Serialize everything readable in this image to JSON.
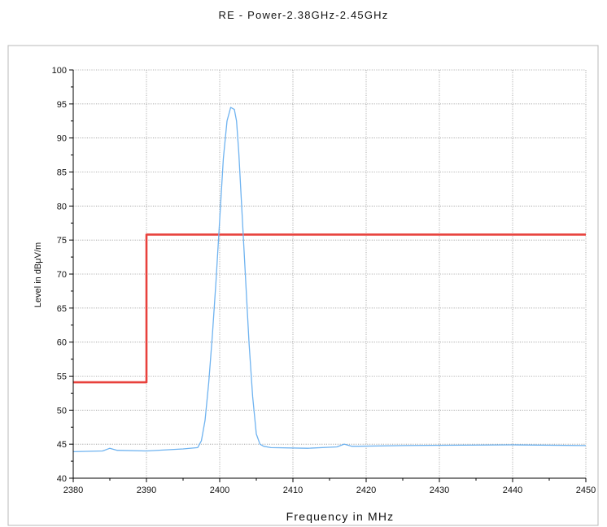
{
  "chart_data": {
    "type": "line",
    "title": "RE - Power-2.38GHz-2.45GHz",
    "xlabel": "Frequency in MHz",
    "ylabel": "Level in dBμV/m",
    "xlim": [
      2380,
      2450
    ],
    "ylim": [
      40,
      100
    ],
    "x_ticks": [
      2380,
      2390,
      2400,
      2410,
      2420,
      2430,
      2440,
      2450
    ],
    "y_ticks": [
      40,
      45,
      50,
      55,
      60,
      65,
      70,
      75,
      80,
      85,
      90,
      95,
      100
    ],
    "grid": true,
    "legend": "none",
    "series": [
      {
        "color": "#e8413c",
        "x": [
          2380,
          2390,
          2390,
          2450
        ],
        "y": [
          54.1,
          54.1,
          75.8,
          75.8
        ]
      },
      {
        "color": "#6fb3f0",
        "x": [
          2380,
          2384,
          2385,
          2386,
          2390,
          2395,
          2397,
          2397.5,
          2398,
          2398.5,
          2399,
          2399.5,
          2400,
          2400.5,
          2401,
          2401.5,
          2402,
          2402.3,
          2402.6,
          2403,
          2403.5,
          2404,
          2404.5,
          2405,
          2405.5,
          2406,
          2407,
          2412,
          2416,
          2417,
          2418,
          2419,
          2425,
          2440,
          2450
        ],
        "y": [
          43.9,
          44.0,
          44.4,
          44.1,
          44.0,
          44.3,
          44.5,
          45.5,
          48.5,
          54.0,
          61.0,
          69.0,
          78.0,
          87.0,
          92.5,
          94.5,
          94.2,
          92.5,
          88.0,
          80.0,
          70.0,
          60.0,
          52.0,
          46.5,
          45.0,
          44.7,
          44.5,
          44.4,
          44.6,
          45.0,
          44.7,
          44.7,
          44.8,
          44.9,
          44.8
        ]
      }
    ]
  }
}
